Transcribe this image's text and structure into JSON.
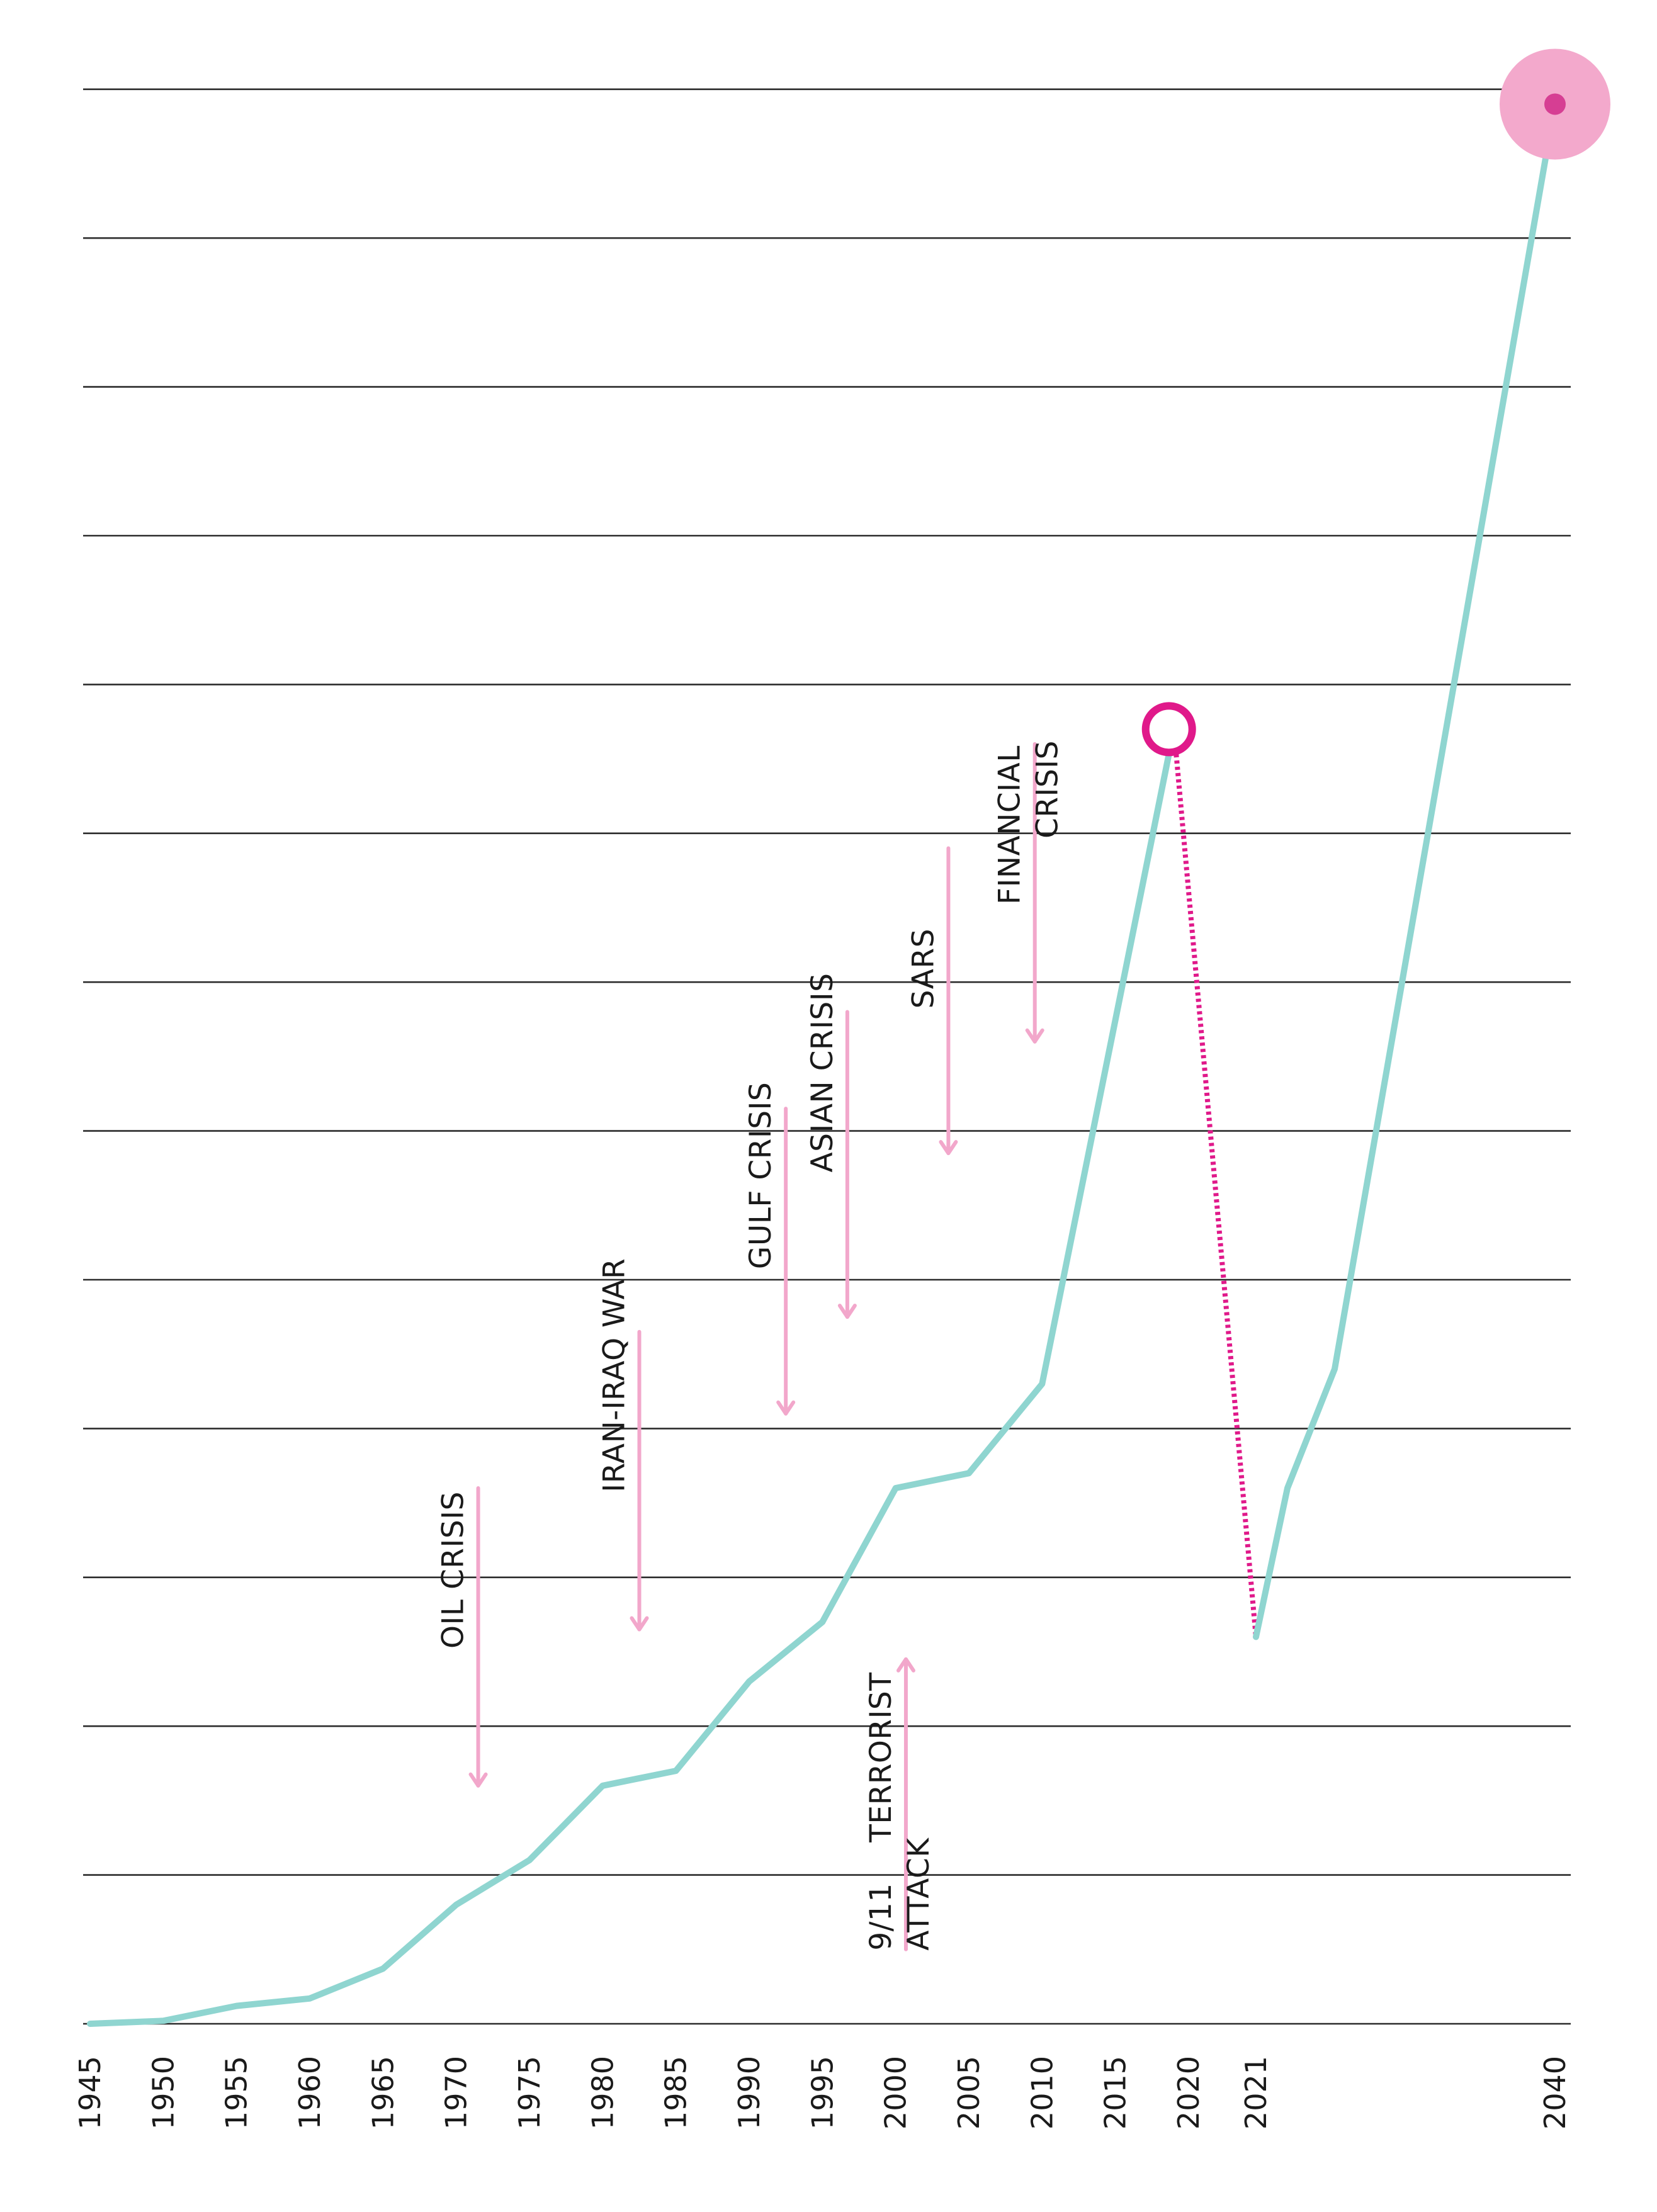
{
  "colors": {
    "background": "#ffffff",
    "grid": "#2b2b2b",
    "series_line": "#8fd5d0",
    "forecast_dotted": "#e0198a",
    "event_arrow": "#f2a7cb",
    "marker_ring": "#e0198a",
    "target_fill": "#f3a9cc",
    "target_center": "#d63e93",
    "text": "#1a1a1a"
  },
  "chart_data": {
    "type": "line",
    "title": "",
    "xlabel": "",
    "ylabel": "",
    "x_tick_labels": [
      "1945",
      "1950",
      "1955",
      "1960",
      "1965",
      "1970",
      "1975",
      "1980",
      "1985",
      "1990",
      "1995",
      "2000",
      "2005",
      "2010",
      "2015",
      "2020",
      "2021",
      "2040"
    ],
    "x_axis_note": "Non-linear x axis: 1945–2020 evenly spaced every 5 years; 2021 and 2040 placed further right.",
    "ylim": [
      0,
      13
    ],
    "grid": true,
    "gridline_count": 14,
    "y_tick_labels_shown": false,
    "series": [
      {
        "style": "solid",
        "color": "#8fd5d0",
        "points": [
          {
            "x": "1945",
            "y": 0.0
          },
          {
            "x": "1950",
            "y": 0.02
          },
          {
            "x": "1955",
            "y": 0.12
          },
          {
            "x": "1960",
            "y": 0.17
          },
          {
            "x": "1965",
            "y": 0.37
          },
          {
            "x": "1970",
            "y": 0.8
          },
          {
            "x": "1975",
            "y": 1.1
          },
          {
            "x": "1980",
            "y": 1.6
          },
          {
            "x": "1985",
            "y": 1.7
          },
          {
            "x": "1990",
            "y": 2.3
          },
          {
            "x": "1995",
            "y": 2.7
          },
          {
            "x": "2000",
            "y": 3.6
          },
          {
            "x": "2005",
            "y": 3.7
          },
          {
            "x": "2010",
            "y": 4.3
          },
          {
            "x": "2019",
            "y": 8.7
          }
        ]
      },
      {
        "style": "dotted",
        "color": "#e0198a",
        "points": [
          {
            "x": "2019",
            "y": 8.7
          },
          {
            "x": "2021",
            "y": 2.6
          }
        ]
      },
      {
        "style": "solid",
        "color": "#8fd5d0",
        "points": [
          {
            "x": "2021",
            "y": 2.6
          },
          {
            "x": "2023",
            "y": 3.6
          },
          {
            "x": "2026",
            "y": 4.4
          },
          {
            "x": "2040",
            "y": 12.9
          }
        ]
      }
    ],
    "markers": [
      {
        "kind": "open-ring",
        "x": "2019",
        "y": 8.7,
        "color": "#e0198a"
      },
      {
        "kind": "target-dot",
        "x": "2040",
        "y": 12.9,
        "color": "#f3a9cc"
      }
    ],
    "events": [
      {
        "label": [
          "OIL CRISIS"
        ],
        "x": 1971.5,
        "direction": "down",
        "from_y": 3.6,
        "to_y": 1.6
      },
      {
        "label": [
          "IRAN-IRAQ WAR"
        ],
        "x": 1982.5,
        "direction": "down",
        "from_y": 4.65,
        "to_y": 2.65
      },
      {
        "label": [
          "GULF CRISIS"
        ],
        "x": 1992.5,
        "direction": "down",
        "from_y": 6.15,
        "to_y": 4.1
      },
      {
        "label": [
          "ASIAN CRISIS"
        ],
        "x": 1996.7,
        "direction": "down",
        "from_y": 6.8,
        "to_y": 4.75
      },
      {
        "label": [
          "9/11",
          "TERRORIST",
          "ATTACK"
        ],
        "x": 2000.7,
        "direction": "up",
        "from_y": 0.5,
        "to_y": 2.45
      },
      {
        "label": [
          "SARS"
        ],
        "x": 2003.6,
        "direction": "down",
        "from_y": 7.9,
        "to_y": 5.85
      },
      {
        "label": [
          "FINANCIAL",
          "CRISIS"
        ],
        "x": 2009.5,
        "direction": "down",
        "from_y": 8.6,
        "to_y": 6.6
      }
    ]
  }
}
